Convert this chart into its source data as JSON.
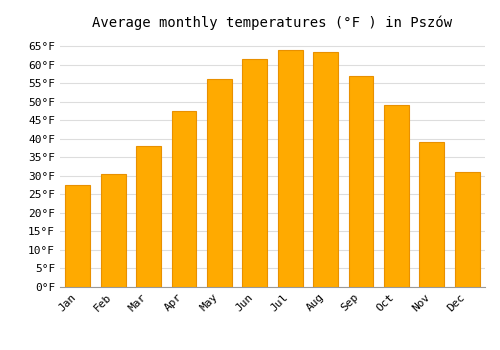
{
  "title": "Average monthly temperatures (°F ) in Pszów",
  "months": [
    "Jan",
    "Feb",
    "Mar",
    "Apr",
    "May",
    "Jun",
    "Jul",
    "Aug",
    "Sep",
    "Oct",
    "Nov",
    "Dec"
  ],
  "values": [
    27.5,
    30.5,
    38.0,
    47.5,
    56.0,
    61.5,
    64.0,
    63.5,
    57.0,
    49.0,
    39.0,
    31.0
  ],
  "bar_color": "#FFAA00",
  "bar_edge_color": "#E89000",
  "background_color": "#ffffff",
  "plot_bg_color": "#ffffff",
  "grid_color": "#dddddd",
  "yticks": [
    0,
    5,
    10,
    15,
    20,
    25,
    30,
    35,
    40,
    45,
    50,
    55,
    60,
    65
  ],
  "ylim": [
    0,
    68
  ],
  "title_fontsize": 10,
  "tick_fontsize": 8,
  "font_family": "monospace"
}
